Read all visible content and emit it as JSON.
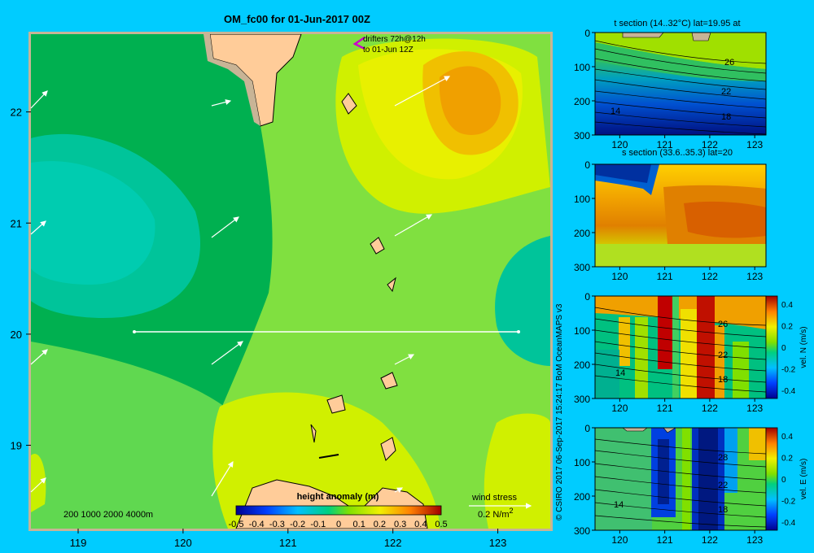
{
  "title": "OM_fc00 for 01-Jun-2017 00Z",
  "drifter_label_1": "drifters 72h@12h",
  "drifter_label_2": "to 01-Jun 12Z",
  "depth_legend": "200  1000  2000  4000m",
  "colorbar_title": "height anomaly (m)",
  "wind_label": "wind stress",
  "wind_scale": "0.2 N/m",
  "wind_scale_sup": "2",
  "credit": "© CSIRO 2017   06-Sep-2017 15:24:17 BoM OceanMAPS v3",
  "colors": {
    "background": "#00ccff",
    "land": "#ffcc99",
    "shelf": "#c8b496"
  },
  "chart_data": [
    {
      "type": "heatmap",
      "name": "map",
      "x_ticks": [
        "119",
        "120",
        "121",
        "122",
        "123"
      ],
      "y_ticks": [
        "22",
        "21",
        "20",
        "19"
      ],
      "xlim": [
        118.55,
        123.5
      ],
      "ylim": [
        18.25,
        22.7
      ],
      "colorbar_ticks": [
        "-0.5",
        "-0.4",
        "-0.3",
        "-0.2",
        "-0.1",
        "0",
        "0.1",
        "0.2",
        "0.3",
        "0.4",
        "0.5"
      ],
      "section_line": {
        "lat": 20.0,
        "lon_from": 119.5,
        "lon_to": 123.2
      }
    },
    {
      "type": "heatmap",
      "name": "t-section",
      "title": "t section (14..32°C) lat=19.95 at",
      "x_ticks": [
        "120",
        "121",
        "122",
        "123"
      ],
      "y_ticks": [
        "0",
        "100",
        "200",
        "300"
      ],
      "contour_labels": [
        "26",
        "22",
        "18",
        "14"
      ]
    },
    {
      "type": "heatmap",
      "name": "s-section",
      "title": "s section (33.6..35.3) lat=20",
      "x_ticks": [
        "120",
        "121",
        "122",
        "123"
      ],
      "y_ticks": [
        "0",
        "100",
        "200",
        "300"
      ]
    },
    {
      "type": "heatmap",
      "name": "vel-n-section",
      "x_ticks": [
        "120",
        "121",
        "122",
        "123"
      ],
      "y_ticks": [
        "0",
        "100",
        "200",
        "300"
      ],
      "contour_labels": [
        "26",
        "22",
        "18",
        "14"
      ],
      "colorbar_ticks": [
        "0.4",
        "0.2",
        "0",
        "-0.2",
        "-0.4"
      ],
      "colorbar_label": "vel. N (m/s)"
    },
    {
      "type": "heatmap",
      "name": "vel-e-section",
      "x_ticks": [
        "120",
        "121",
        "122",
        "123"
      ],
      "y_ticks": [
        "0",
        "100",
        "200",
        "300"
      ],
      "contour_labels": [
        "28",
        "22",
        "18",
        "14"
      ],
      "colorbar_ticks": [
        "0.4",
        "0.2",
        "0",
        "-0.2",
        "-0.4"
      ],
      "colorbar_label": "vel. E (m/s)"
    }
  ]
}
